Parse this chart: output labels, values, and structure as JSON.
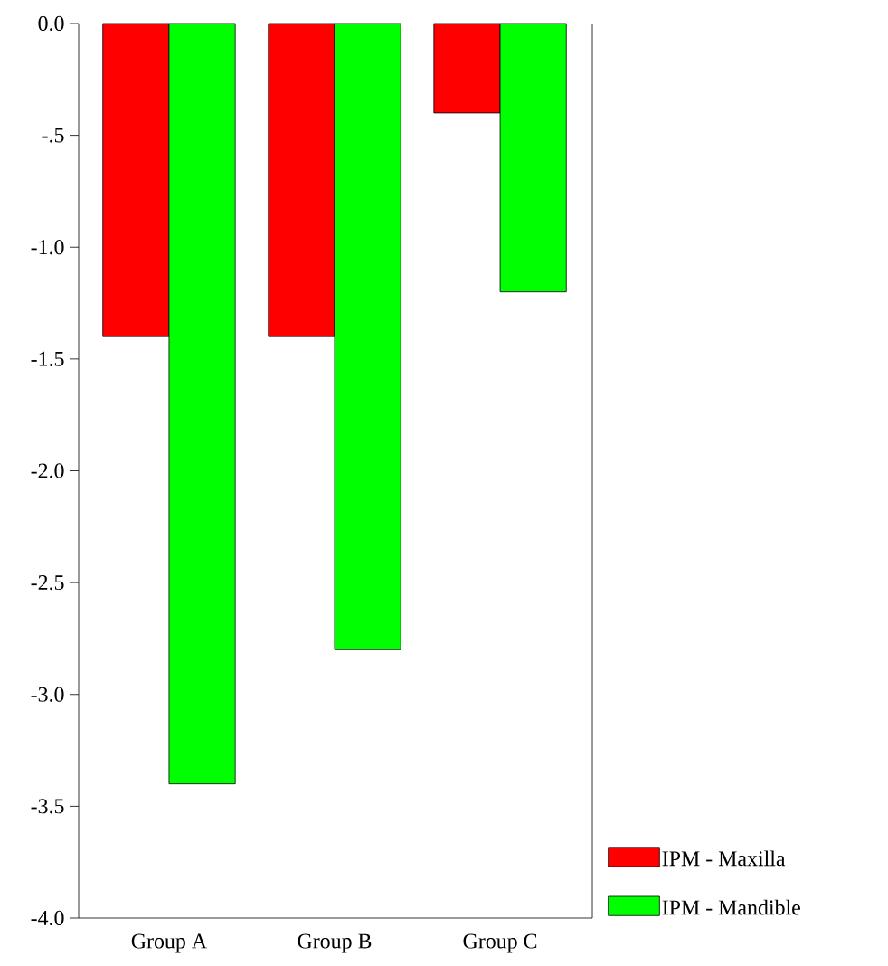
{
  "chart_data": {
    "type": "bar",
    "categories": [
      "Group A",
      "Group B",
      "Group C"
    ],
    "series": [
      {
        "name": "IPM - Maxilla",
        "color": "#ff0000",
        "values": [
          -1.4,
          -1.4,
          -0.4
        ]
      },
      {
        "name": "IPM - Mandible",
        "color": "#00ff00",
        "values": [
          -3.4,
          -2.8,
          -1.2
        ]
      }
    ],
    "ylim": [
      -4.0,
      0.0
    ],
    "yticks": [
      {
        "value": 0.0,
        "label": "0.0"
      },
      {
        "value": -0.5,
        "label": "-.5"
      },
      {
        "value": -1.0,
        "label": "-1.0"
      },
      {
        "value": -1.5,
        "label": "-1.5"
      },
      {
        "value": -2.0,
        "label": "-2.0"
      },
      {
        "value": -2.5,
        "label": "-2.5"
      },
      {
        "value": -3.0,
        "label": "-3.0"
      },
      {
        "value": -3.5,
        "label": "-3.5"
      },
      {
        "value": -4.0,
        "label": "-4.0"
      }
    ],
    "grid": false,
    "legend": "bottom right"
  }
}
